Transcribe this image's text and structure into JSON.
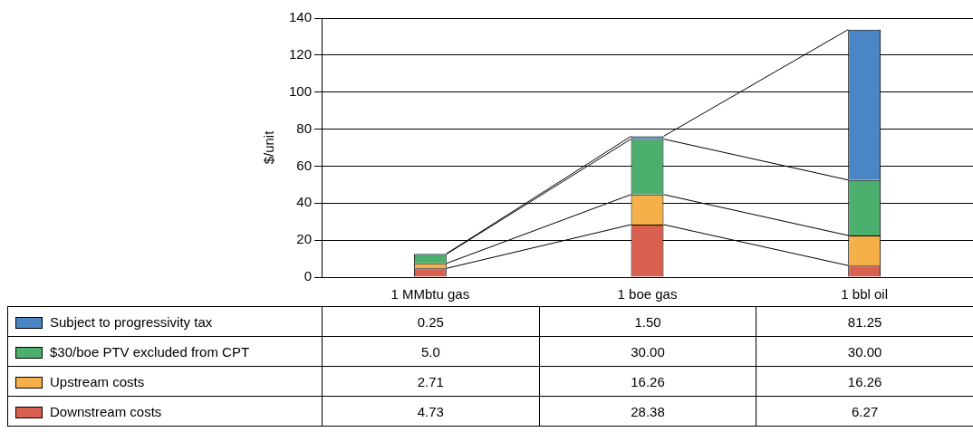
{
  "chart_data": {
    "type": "bar",
    "stacked": true,
    "ylabel": "$/unit",
    "categories": [
      "1 MMbtu gas",
      "1 boe gas",
      "1 bbl oil"
    ],
    "ylim": [
      0,
      140
    ],
    "yticks": [
      0,
      20,
      40,
      60,
      80,
      100,
      120,
      140
    ],
    "grid": "y",
    "legend": "bottom",
    "series": [
      {
        "name": "Downstream costs",
        "color": "#d9604e",
        "values": [
          4.73,
          28.38,
          6.27
        ],
        "value_labels": [
          "4.73",
          "28.38",
          "6.27"
        ]
      },
      {
        "name": "Upstream costs",
        "color": "#f5b04a",
        "values": [
          2.71,
          16.26,
          16.26
        ],
        "value_labels": [
          "2.71",
          "16.26",
          "16.26"
        ]
      },
      {
        "name": "$30/boe PTV excluded from CPT",
        "color": "#4caf6e",
        "values": [
          5.0,
          30.0,
          30.0
        ],
        "value_labels": [
          "5.0",
          "30.00",
          "30.00"
        ]
      },
      {
        "name": "Subject to progressivity tax",
        "color": "#4a86c5",
        "values": [
          0.25,
          1.5,
          81.25
        ],
        "value_labels": [
          "0.25",
          "1.50",
          "81.25"
        ]
      }
    ]
  }
}
